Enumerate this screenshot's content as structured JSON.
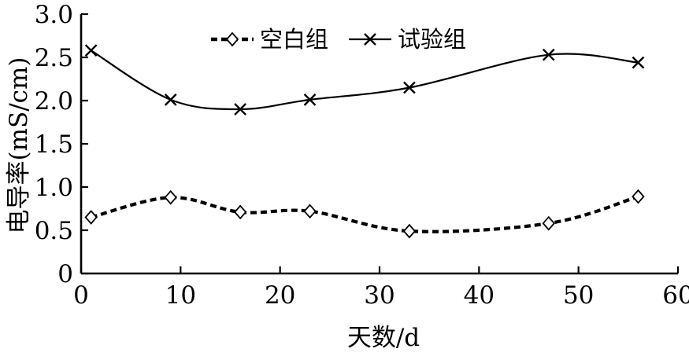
{
  "figure": {
    "background": "#ffffff",
    "ink_color": "#000000"
  },
  "chart_data": {
    "type": "line",
    "title": "",
    "xlabel": "天数/d",
    "ylabel": "电导率(mS/cm)",
    "xlim": [
      0,
      60
    ],
    "ylim": [
      0,
      3.0
    ],
    "x_ticks": [
      0,
      10,
      20,
      30,
      40,
      50,
      60
    ],
    "x_tick_labels": [
      "0",
      "10",
      "20",
      "30",
      "40",
      "50",
      "60"
    ],
    "y_ticks": [
      0,
      0.5,
      1.0,
      1.5,
      2.0,
      2.5,
      3.0
    ],
    "y_tick_labels": [
      "0",
      "0.5",
      "1.0",
      "1.5",
      "2.0",
      "2.5",
      "3.0"
    ],
    "grid": false,
    "legend_position": "top-center-inside",
    "x": [
      1,
      9,
      16,
      23,
      33,
      47,
      56
    ],
    "series": [
      {
        "name": "空白组",
        "line_style": "dashed",
        "marker": "diamond",
        "values": [
          0.65,
          0.88,
          0.71,
          0.72,
          0.49,
          0.58,
          0.89
        ]
      },
      {
        "name": "试验组",
        "line_style": "solid",
        "marker": "x",
        "values": [
          2.58,
          2.01,
          1.9,
          2.01,
          2.15,
          2.53,
          2.44
        ]
      }
    ]
  }
}
